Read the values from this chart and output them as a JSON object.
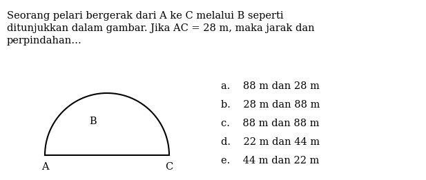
{
  "title_line1": "Seorang pelari bergerak dari A ke C melalui B seperti",
  "title_line2": "ditunjukkan dalam gambar. Jika AC = 28 m, maka jarak dan",
  "title_line3": "perpindahan…",
  "options": [
    "a.    88 m dan 28 m",
    "b.    28 m dan 88 m",
    "c.    88 m dan 88 m",
    "d.    22 m dan 44 m",
    "e.    44 m dan 22 m"
  ],
  "label_A": "A",
  "label_B": "B",
  "label_C": "C",
  "bg_color": "#ffffff",
  "text_color": "#000000",
  "semicircle_color": "#000000",
  "font_size_title": 10.5,
  "font_size_options": 10.5,
  "font_size_labels": 10.5
}
